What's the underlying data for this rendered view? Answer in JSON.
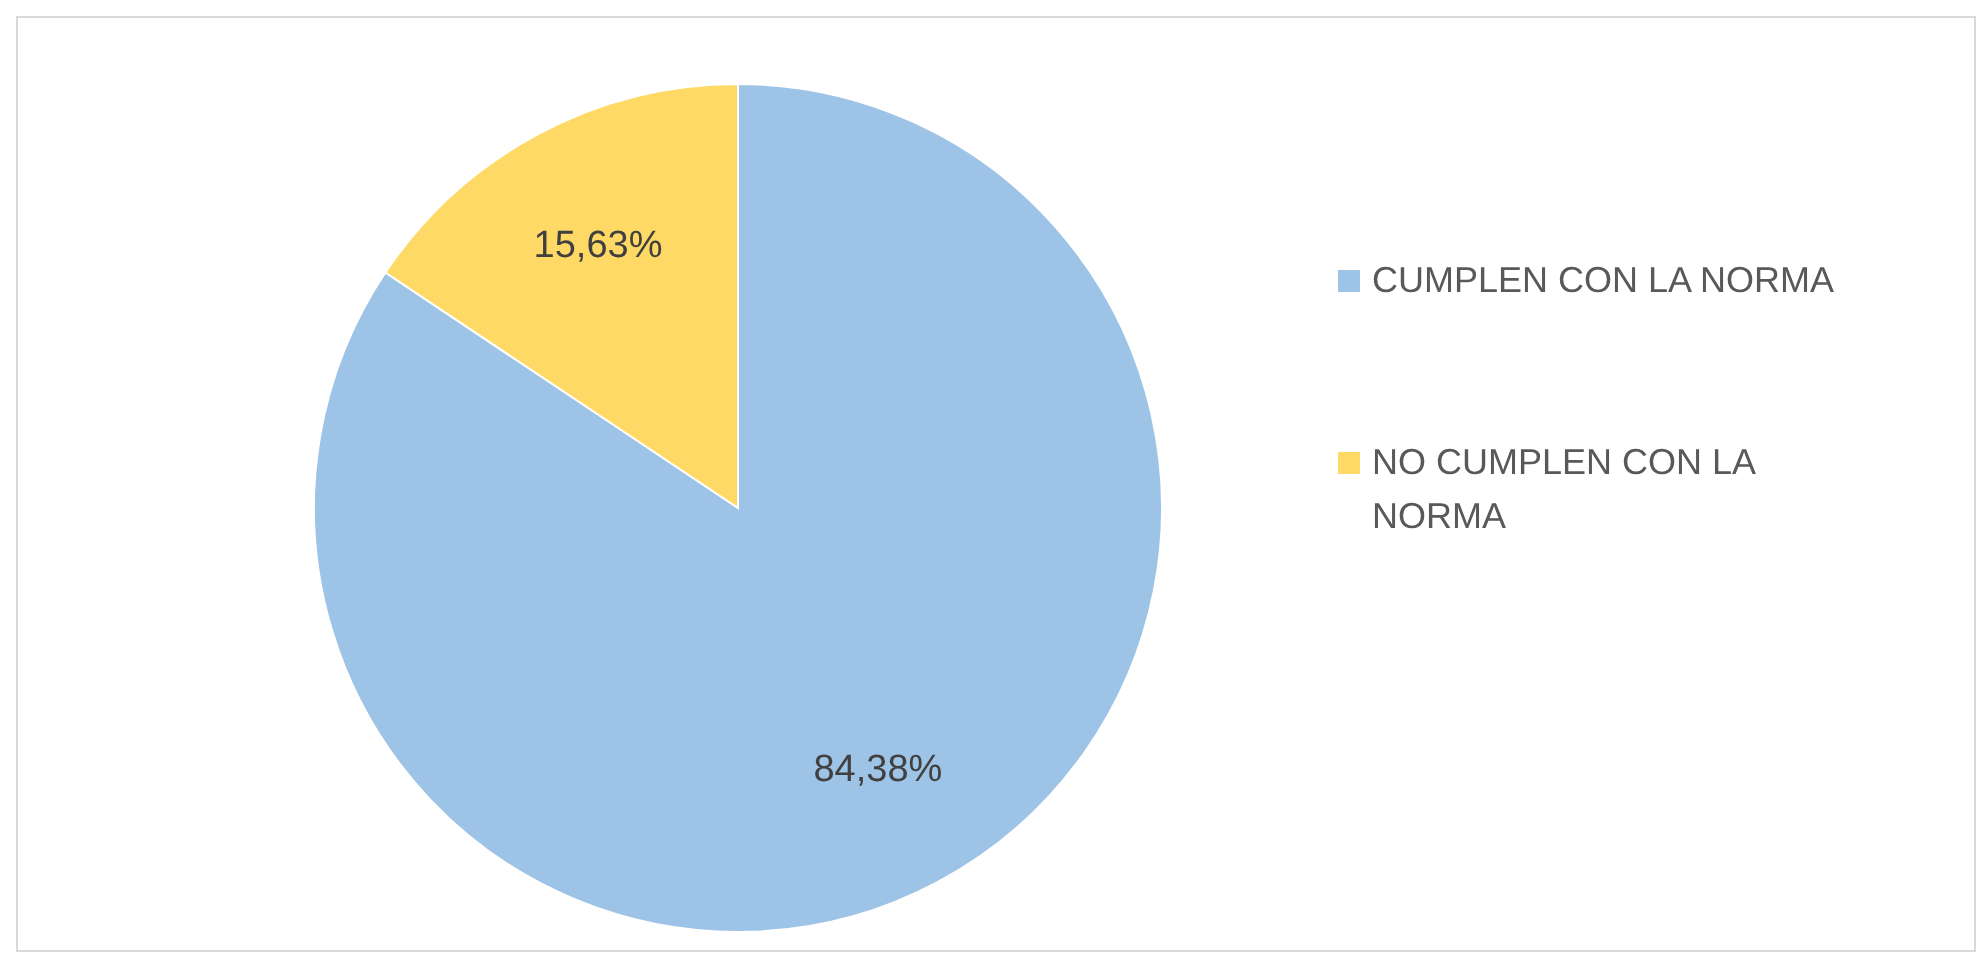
{
  "chart_data": {
    "type": "pie",
    "categories": [
      "CUMPLEN CON LA NORMA",
      "NO CUMPLEN CON LA NORMA"
    ],
    "values": [
      84.38,
      15.63
    ],
    "colors": [
      "#9dc3e6",
      "#ffd966"
    ],
    "value_labels": [
      "84,38%",
      "15,63%"
    ],
    "legend": "right"
  }
}
